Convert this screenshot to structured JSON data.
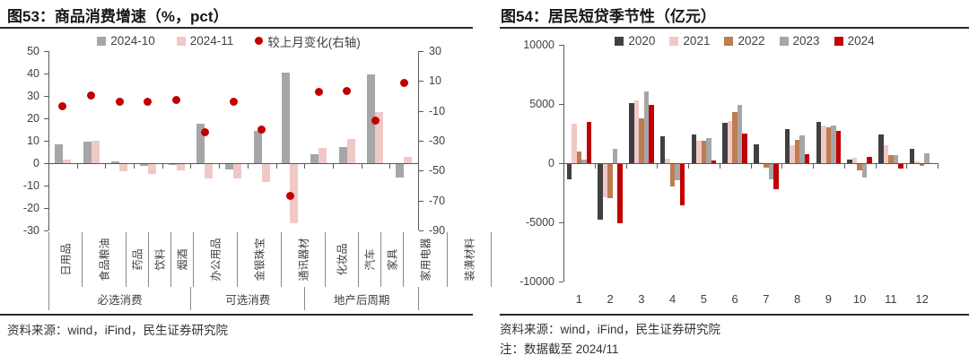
{
  "left_panel": {
    "title": "图53：商品消费增速（%，pct）",
    "source": "资料来源：wind，iFind，民生证券研究院"
  },
  "right_panel": {
    "title": "图54：居民短贷季节性（亿元）",
    "source": "资料来源：wind，iFind，民生证券研究院",
    "note": "注：数据截至 2024/11"
  },
  "colors": {
    "axis": "#595959",
    "tick_text": "#404040",
    "bar_gray": "#a6a6a6",
    "bar_pink": "#f0c9c6",
    "bar_dark": "#404040",
    "bar_brown": "#bd7c52",
    "accent_red": "#c00000",
    "rule_dark": "#2a2a2a"
  },
  "chart_data": [
    {
      "type": "bar",
      "title": "图53：商品消费增速（%，pct）",
      "categories": [
        "日用品",
        "食品粮油",
        "药品",
        "饮料",
        "烟酒",
        "办公用品",
        "金银珠宝",
        "通讯器材",
        "化妆品",
        "汽车",
        "家具",
        "家用电器",
        "装潢材料"
      ],
      "groups": [
        {
          "label": "必选消费",
          "span": 5
        },
        {
          "label": "可选消费",
          "span": 4
        },
        {
          "label": "地产后周期",
          "span": 4
        }
      ],
      "series": [
        {
          "name": "2024-10",
          "kind": "bar",
          "axis": "left",
          "color": "#a6a6a6",
          "values": [
            8.4,
            9.8,
            1.0,
            -0.6,
            -0.4,
            17.8,
            -2.4,
            14.5,
            40.5,
            4.0,
            7.2,
            39.5,
            -5.8
          ]
        },
        {
          "name": "2024-11",
          "kind": "bar",
          "axis": "left",
          "color": "#f0c9c6",
          "values": [
            1.5,
            10.2,
            -3.0,
            -4.5,
            -2.8,
            -6.2,
            -6.3,
            -8.0,
            -26.3,
            7.0,
            10.8,
            22.8,
            2.8
          ]
        },
        {
          "name": "较上月变化(右轴)",
          "kind": "scatter",
          "axis": "right",
          "color": "#c00000",
          "values": [
            -6.9,
            0.4,
            -4.0,
            -3.9,
            -2.4,
            -24.0,
            -3.9,
            -22.5,
            -66.8,
            3.0,
            3.6,
            -16.7,
            8.6
          ]
        }
      ],
      "left_axis": {
        "min": -30,
        "max": 50,
        "ticks": [
          50,
          40,
          30,
          20,
          10,
          0,
          -10,
          -20,
          -30
        ]
      },
      "right_axis": {
        "min": -90,
        "max": 30,
        "ticks": [
          30,
          10,
          -10,
          -30,
          -50,
          -70,
          -90
        ]
      },
      "legend_position": "top",
      "grid": false
    },
    {
      "type": "bar",
      "title": "图54：居民短贷季节性（亿元）",
      "categories": [
        "1",
        "2",
        "3",
        "4",
        "5",
        "6",
        "7",
        "8",
        "9",
        "10",
        "11",
        "12"
      ],
      "series": [
        {
          "name": "2020",
          "color": "#404040",
          "values": [
            -1300,
            -4700,
            5100,
            2250,
            2400,
            3400,
            1600,
            2900,
            3500,
            300,
            2450,
            1250
          ]
        },
        {
          "name": "2021",
          "color": "#f0c9c6",
          "values": [
            3300,
            -2800,
            5280,
            400,
            1900,
            3550,
            100,
            1500,
            3150,
            450,
            1550,
            150
          ]
        },
        {
          "name": "2022",
          "color": "#bd7c52",
          "values": [
            950,
            -2900,
            3800,
            -1900,
            1900,
            4350,
            -300,
            2000,
            3000,
            -550,
            650,
            -150
          ]
        },
        {
          "name": "2023",
          "color": "#a6a6a6",
          "values": [
            300,
            1200,
            6050,
            -1350,
            2100,
            4900,
            -1300,
            2350,
            3200,
            -1150,
            650,
            800
          ]
        },
        {
          "name": "2024",
          "color": "#c00000",
          "values": [
            3450,
            -5000,
            4900,
            -3450,
            250,
            2500,
            -2150,
            750,
            2700,
            500,
            -400,
            null
          ]
        }
      ],
      "y_axis": {
        "min": -10000,
        "max": 10000,
        "ticks": [
          10000,
          5000,
          0,
          -5000,
          -10000
        ]
      },
      "legend_position": "top",
      "grid": false
    }
  ]
}
